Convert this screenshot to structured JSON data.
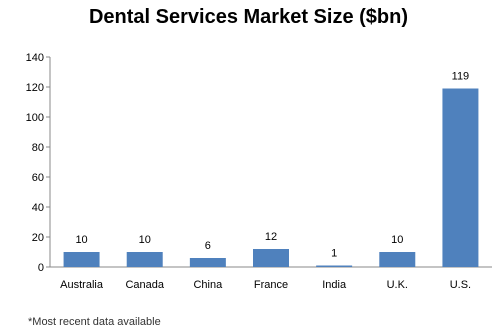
{
  "chart_data": {
    "type": "bar",
    "title": "Dental Services Market Size ($bn)",
    "categories": [
      "Australia",
      "Canada",
      "China",
      "France",
      "India",
      "U.K.",
      "U.S."
    ],
    "values": [
      10,
      10,
      6,
      12,
      1,
      10,
      119
    ],
    "data_labels": [
      "10",
      "10",
      "6",
      "12",
      "1",
      "10",
      "119"
    ],
    "ylim": [
      0,
      140
    ],
    "yticks": [
      "0",
      "20",
      "40",
      "60",
      "80",
      "100",
      "120",
      "140"
    ],
    "xlabel": "",
    "ylabel": "",
    "grid": false,
    "legend": "none",
    "bar_color": "#4f81bd"
  },
  "footnote": "*Most recent data available"
}
